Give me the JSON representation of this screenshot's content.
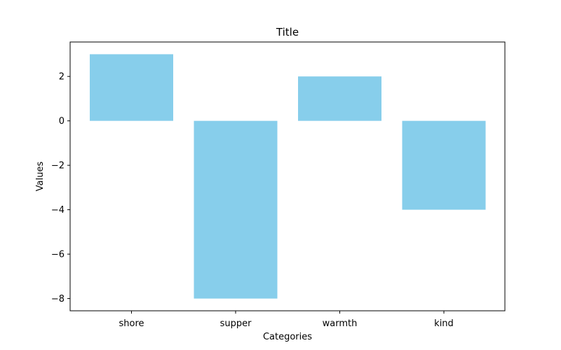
{
  "chart_data": {
    "type": "bar",
    "title": "Title",
    "xlabel": "Categories",
    "ylabel": "Values",
    "categories": [
      "shore",
      "supper",
      "warmth",
      "kind"
    ],
    "values": [
      3,
      -8,
      2,
      -4
    ],
    "ylim": [
      -8.55,
      3.55
    ],
    "yticks": [
      2,
      0,
      -2,
      -4,
      -6,
      -8
    ],
    "ytick_labels": [
      "2",
      "0",
      "−2",
      "−4",
      "−6",
      "−8"
    ],
    "bar_color": "#87ceeb",
    "grid": false,
    "legend": "none"
  }
}
